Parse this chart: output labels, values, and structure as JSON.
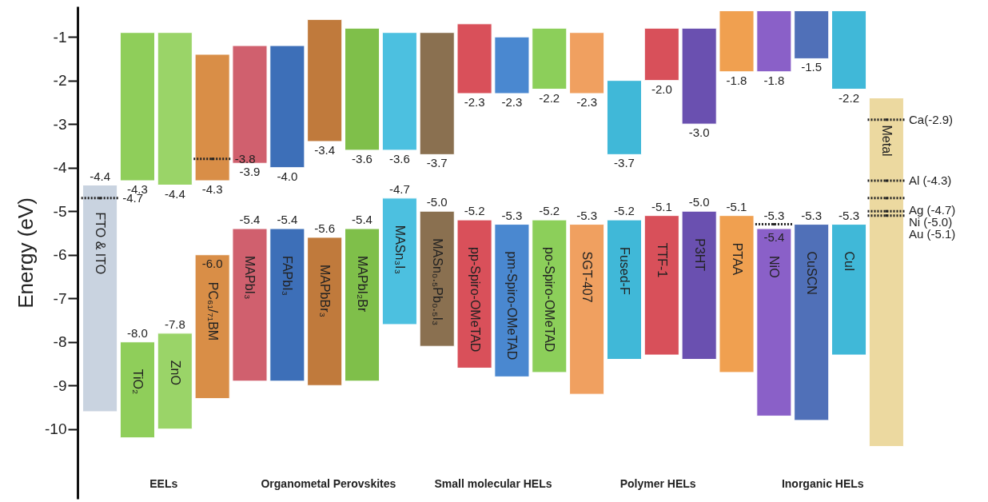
{
  "chart_data": {
    "type": "bar",
    "ylabel": "Energy (eV)",
    "ylim": [
      -11.6,
      -0.3
    ],
    "yticks": [
      -1,
      -2,
      -3,
      -4,
      -5,
      -6,
      -7,
      -8,
      -9,
      -10
    ],
    "grid": false,
    "categories": [
      "FTO & ITO",
      "TiO₂",
      "ZnO",
      "PC₆₁/₇₁BM",
      "MAPbI₃",
      "FAPbI₃",
      "MAPbBr₃",
      "MAPbI₂Br",
      "MASn₃I₃",
      "MASn₀.₅Pb₀.₅I₃",
      "pp-Spiro-OMeTAD",
      "pm-Spiro-OMeTAD",
      "po-Spiro-OMeTAD",
      "SGT-407",
      "Fused-F",
      "TTF-1",
      "P3HT",
      "PTAA",
      "NiO",
      "CuSCN",
      "CuI",
      "Metal"
    ],
    "series": [
      {
        "base": [
          null,
          -4.3,
          -4.4,
          -4.3,
          -3.9,
          -4.0,
          -3.4,
          -3.6,
          -3.6,
          -3.7,
          -2.3,
          -2.3,
          -2.2,
          -2.3,
          -3.7,
          -2.0,
          -3.0,
          -1.8,
          -1.8,
          -1.5,
          -2.2,
          null
        ],
        "values": [
          null,
          3.4,
          3.5,
          2.9,
          2.7,
          2.8,
          2.8,
          2.8,
          2.7,
          2.8,
          1.6,
          1.3,
          1.4,
          1.4,
          1.7,
          1.2,
          2.2,
          1.4,
          1.4,
          1.1,
          1.8,
          null
        ],
        "colors": [
          null,
          "#8fce5a",
          "#9ad468",
          "#d98e47",
          "#d0606e",
          "#3d6fb8",
          "#c07a3c",
          "#7fbf4a",
          "#4cc0e0",
          "#8a7050",
          "#d9505a",
          "#4a88d0",
          "#8ccf5a",
          "#f0a060",
          "#40b8d8",
          "#d8505a",
          "#6a50b0",
          "#f0a050",
          "#8a60c8",
          "#5070b8",
          "#40b8d8",
          null
        ]
      },
      {
        "base": [
          -9.6,
          -10.2,
          -10.0,
          -9.3,
          -8.9,
          -8.9,
          -9.0,
          -8.9,
          -7.6,
          -8.1,
          -8.6,
          -8.8,
          -8.7,
          -9.2,
          -8.4,
          -8.3,
          -8.4,
          -8.7,
          -9.7,
          -9.8,
          -8.3,
          -10.4
        ],
        "values": [
          5.2,
          2.2,
          2.2,
          3.3,
          3.5,
          3.5,
          3.4,
          3.5,
          2.9,
          3.1,
          3.4,
          3.5,
          3.5,
          3.9,
          3.2,
          3.2,
          3.4,
          3.6,
          4.3,
          4.5,
          3.0,
          8.0
        ],
        "colors": [
          "#c9d3e0",
          "#8fce5a",
          "#9ad468",
          "#d98e47",
          "#d0606e",
          "#3d6fb8",
          "#c07a3c",
          "#7fbf4a",
          "#4cc0e0",
          "#8a7050",
          "#d9505a",
          "#4a88d0",
          "#8ccf5a",
          "#f0a060",
          "#40b8d8",
          "#d8505a",
          "#6a50b0",
          "#f0a050",
          "#8a60c8",
          "#5070b8",
          "#40b8d8",
          "#ecd9a0"
        ]
      },
      {
        "type": "scatter",
        "x": [
          "FTO & ITO",
          "PC₆₁/₇₁BM",
          "NiO",
          "Metal",
          "Metal",
          "Metal",
          "Metal",
          "Metal"
        ],
        "values": [
          -4.7,
          -3.8,
          -5.3,
          -2.9,
          -4.3,
          -4.7,
          -5.0,
          -5.1
        ],
        "color": "#222222",
        "line_style": "dotted"
      }
    ],
    "annotations": [
      {
        "text": "-4.3",
        "x": "TiO₂",
        "y": -4.3
      },
      {
        "text": "-4.4",
        "x": "ZnO",
        "y": -4.4
      },
      {
        "text": "-4.3",
        "x": "PC₆₁/₇₁BM",
        "y": -4.3
      },
      {
        "text": "-3.9",
        "x": "MAPbI₃",
        "y": -3.9
      },
      {
        "text": "-4.0",
        "x": "FAPbI₃",
        "y": -4.0
      },
      {
        "text": "-3.4",
        "x": "MAPbBr₃",
        "y": -3.4
      },
      {
        "text": "-3.6",
        "x": "MAPbI₂Br",
        "y": -3.6
      },
      {
        "text": "-3.6",
        "x": "MASn₃I₃",
        "y": -3.6
      },
      {
        "text": "-3.7",
        "x": "MASn₀.₅Pb₀.₅I₃",
        "y": -3.7
      },
      {
        "text": "-2.3",
        "x": "pp-Spiro-OMeTAD",
        "y": -2.3
      },
      {
        "text": "-2.3",
        "x": "pm-Spiro-OMeTAD",
        "y": -2.3
      },
      {
        "text": "-2.2",
        "x": "po-Spiro-OMeTAD",
        "y": -2.2
      },
      {
        "text": "-2.3",
        "x": "SGT-407",
        "y": -2.3
      },
      {
        "text": "-3.7",
        "x": "Fused-F",
        "y": -3.7
      },
      {
        "text": "-2.0",
        "x": "TTF-1",
        "y": -2.0
      },
      {
        "text": "-3.0",
        "x": "P3HT",
        "y": -3.0
      },
      {
        "text": "-1.8",
        "x": "PTAA",
        "y": -1.8
      },
      {
        "text": "-1.8",
        "x": "NiO",
        "y": -1.8
      },
      {
        "text": "-1.5",
        "x": "CuSCN",
        "y": -1.5
      },
      {
        "text": "-2.2",
        "x": "CuI",
        "y": -2.2
      },
      {
        "text": "-4.4",
        "x": "FTO & ITO",
        "y": -4.4
      },
      {
        "text": "-8.0",
        "x": "TiO₂",
        "y": -8.0
      },
      {
        "text": "-7.8",
        "x": "ZnO",
        "y": -7.8
      },
      {
        "text": "-6.0",
        "x": "PC₆₁/₇₁BM",
        "y": -6.0
      },
      {
        "text": "-5.4",
        "x": "MAPbI₃",
        "y": -5.4
      },
      {
        "text": "-5.4",
        "x": "FAPbI₃",
        "y": -5.4
      },
      {
        "text": "-5.6",
        "x": "MAPbBr₃",
        "y": -5.6
      },
      {
        "text": "-5.4",
        "x": "MAPbI₂Br",
        "y": -5.4
      },
      {
        "text": "-4.7",
        "x": "MASn₃I₃",
        "y": -4.7
      },
      {
        "text": "-5.0",
        "x": "MASn₀.₅Pb₀.₅I₃",
        "y": -5.0
      },
      {
        "text": "-5.2",
        "x": "pp-Spiro-OMeTAD",
        "y": -5.2
      },
      {
        "text": "-5.3",
        "x": "pm-Spiro-OMeTAD",
        "y": -5.3
      },
      {
        "text": "-5.2",
        "x": "po-Spiro-OMeTAD",
        "y": -5.2
      },
      {
        "text": "-5.3",
        "x": "SGT-407",
        "y": -5.3
      },
      {
        "text": "-5.2",
        "x": "Fused-F",
        "y": -5.2
      },
      {
        "text": "-5.1",
        "x": "TTF-1",
        "y": -5.1
      },
      {
        "text": "-5.0",
        "x": "P3HT",
        "y": -5.0
      },
      {
        "text": "-5.1",
        "x": "PTAA",
        "y": -5.1
      },
      {
        "text": "-5.4",
        "x": "NiO",
        "y": -5.4
      },
      {
        "text": "-5.3",
        "x": "CuSCN",
        "y": -5.3
      },
      {
        "text": "-5.3",
        "x": "CuI",
        "y": -5.3
      },
      {
        "text": "-4.7",
        "x": "FTO & ITO",
        "y": -4.7
      },
      {
        "text": "-3.8",
        "x": "PC₆₁/₇₁BM",
        "y": -3.8
      },
      {
        "text": "-5.3",
        "x": "NiO",
        "y": -5.3
      },
      {
        "text": "Ca(-2.9)",
        "x": "Metal",
        "y": -2.9
      },
      {
        "text": "Al (-4.3)",
        "x": "Metal",
        "y": -4.3
      },
      {
        "text": "Ag (-4.7)",
        "x": "Metal",
        "y": -4.7
      },
      {
        "text": "Ni (-5.0)",
        "x": "Metal",
        "y": -5.0
      },
      {
        "text": "Au (-5.1)",
        "x": "Metal",
        "y": -5.1
      },
      "EELs",
      "Organometal Perovskites",
      "Small molecular HELs",
      "Polymer HELs",
      "Inorganic HELs"
    ]
  }
}
